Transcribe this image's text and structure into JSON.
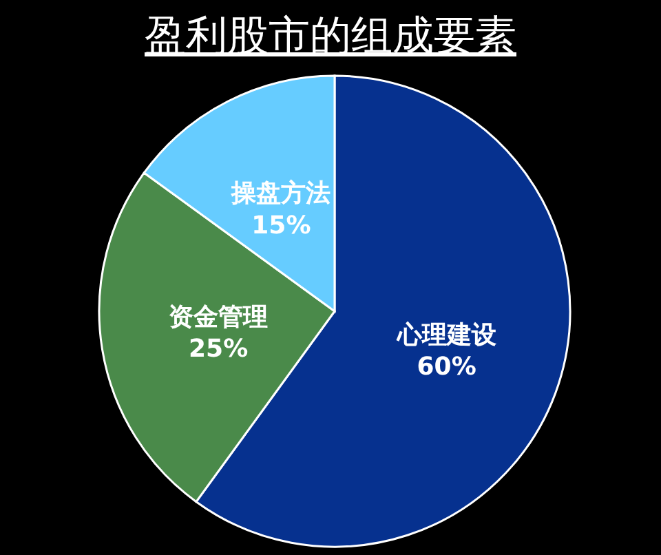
{
  "chart_data": {
    "type": "pie",
    "title": "盈利股市的组成要素",
    "categories": [
      "心理建设",
      "资金管理",
      "操盘方法"
    ],
    "values": [
      60,
      25,
      15
    ],
    "value_labels": [
      "60%",
      "25%",
      "15%"
    ],
    "colors": [
      "#06318f",
      "#4a8a4a",
      "#66ccff"
    ],
    "legend": false
  }
}
